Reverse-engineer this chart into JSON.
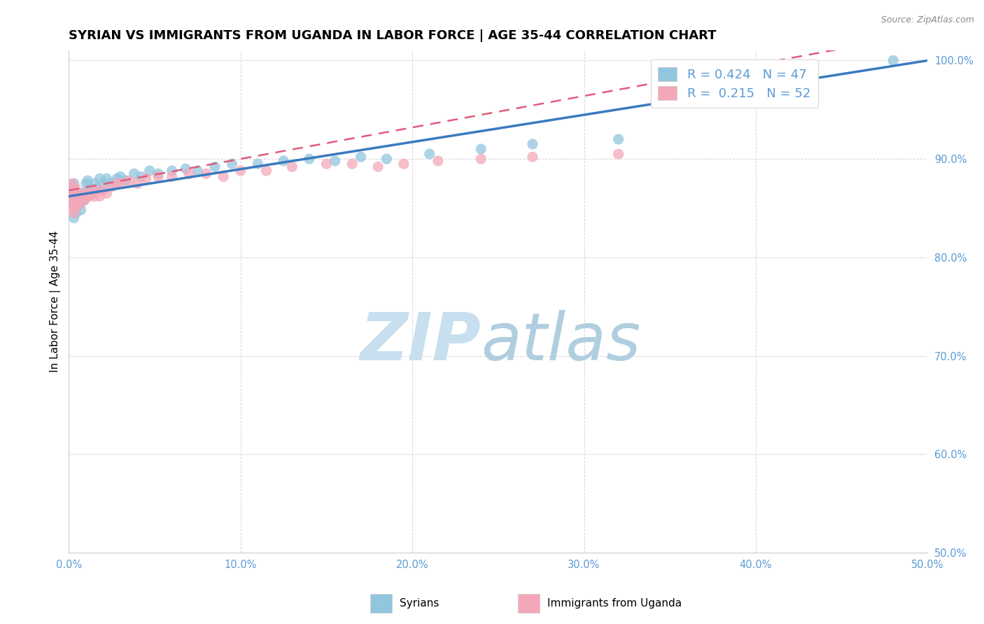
{
  "title": "SYRIAN VS IMMIGRANTS FROM UGANDA IN LABOR FORCE | AGE 35-44 CORRELATION CHART",
  "source": "Source: ZipAtlas.com",
  "ylabel": "In Labor Force | Age 35-44",
  "xlim": [
    0.0,
    0.5
  ],
  "ylim": [
    0.5,
    1.01
  ],
  "xticks": [
    0.0,
    0.1,
    0.2,
    0.3,
    0.4,
    0.5
  ],
  "yticks": [
    0.5,
    0.6,
    0.7,
    0.8,
    0.9,
    1.0
  ],
  "ytick_labels": [
    "50.0%",
    "60.0%",
    "70.0%",
    "80.0%",
    "90.0%",
    "100.0%"
  ],
  "xtick_labels": [
    "0.0%",
    "10.0%",
    "20.0%",
    "30.0%",
    "40.0%",
    "50.0%"
  ],
  "legend_entry1": "Syrians",
  "legend_entry2": "Immigrants from Uganda",
  "r1": 0.424,
  "n1": 47,
  "r2": 0.215,
  "n2": 52,
  "blue_color": "#92c5de",
  "pink_color": "#f4a7b9",
  "trend_blue": "#3a7abf",
  "trend_pink": "#e05c7a",
  "title_fontsize": 13,
  "axis_label_fontsize": 11,
  "tick_fontsize": 10.5,
  "syrians_x": [
    0.001,
    0.002,
    0.003,
    0.003,
    0.004,
    0.004,
    0.005,
    0.005,
    0.006,
    0.007,
    0.007,
    0.008,
    0.009,
    0.01,
    0.01,
    0.011,
    0.012,
    0.013,
    0.015,
    0.016,
    0.018,
    0.02,
    0.022,
    0.025,
    0.028,
    0.03,
    0.033,
    0.038,
    0.042,
    0.047,
    0.052,
    0.06,
    0.068,
    0.075,
    0.085,
    0.095,
    0.11,
    0.125,
    0.14,
    0.155,
    0.17,
    0.185,
    0.21,
    0.24,
    0.27,
    0.32,
    0.48
  ],
  "syrians_y": [
    0.855,
    0.87,
    0.84,
    0.875,
    0.86,
    0.845,
    0.858,
    0.852,
    0.862,
    0.855,
    0.848,
    0.865,
    0.858,
    0.875,
    0.862,
    0.878,
    0.87,
    0.865,
    0.875,
    0.87,
    0.88,
    0.875,
    0.88,
    0.875,
    0.88,
    0.882,
    0.878,
    0.885,
    0.882,
    0.888,
    0.885,
    0.888,
    0.89,
    0.888,
    0.892,
    0.895,
    0.895,
    0.898,
    0.9,
    0.898,
    0.902,
    0.9,
    0.905,
    0.91,
    0.915,
    0.92,
    1.0
  ],
  "uganda_x": [
    0.001,
    0.001,
    0.002,
    0.002,
    0.002,
    0.003,
    0.003,
    0.003,
    0.003,
    0.004,
    0.004,
    0.004,
    0.005,
    0.005,
    0.005,
    0.006,
    0.006,
    0.007,
    0.007,
    0.008,
    0.009,
    0.01,
    0.011,
    0.012,
    0.013,
    0.015,
    0.016,
    0.018,
    0.02,
    0.022,
    0.025,
    0.028,
    0.03,
    0.035,
    0.04,
    0.045,
    0.052,
    0.06,
    0.07,
    0.08,
    0.09,
    0.1,
    0.115,
    0.13,
    0.15,
    0.165,
    0.18,
    0.195,
    0.215,
    0.24,
    0.27,
    0.32
  ],
  "uganda_y": [
    0.87,
    0.858,
    0.862,
    0.875,
    0.85,
    0.868,
    0.855,
    0.862,
    0.845,
    0.858,
    0.87,
    0.852,
    0.862,
    0.858,
    0.852,
    0.862,
    0.855,
    0.86,
    0.865,
    0.862,
    0.858,
    0.865,
    0.862,
    0.862,
    0.865,
    0.862,
    0.868,
    0.862,
    0.868,
    0.865,
    0.872,
    0.875,
    0.875,
    0.878,
    0.875,
    0.88,
    0.882,
    0.882,
    0.885,
    0.885,
    0.882,
    0.888,
    0.888,
    0.892,
    0.895,
    0.895,
    0.892,
    0.895,
    0.898,
    0.9,
    0.902,
    0.905
  ]
}
